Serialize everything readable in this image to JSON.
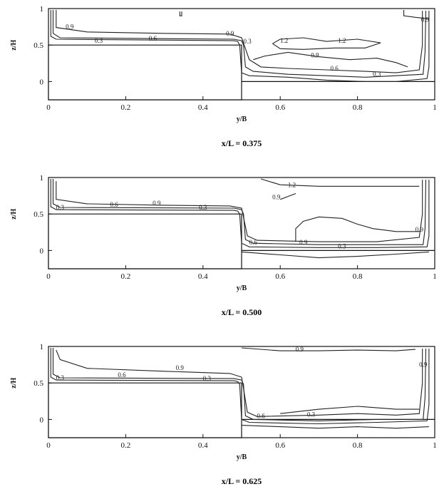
{
  "chart_data": [
    {
      "type": "contour",
      "title": "x/L = 0.375",
      "xlabel": "y/B",
      "ylabel": "z/H",
      "xlim": [
        0,
        1
      ],
      "ylim": [
        -0.25,
        1
      ],
      "xticks": [
        "0",
        "0.2",
        "0.4",
        "0.6",
        "0.8",
        "1"
      ],
      "yticks": [
        "1",
        "0.5",
        "0"
      ],
      "contour_levels": [
        "0.3",
        "0.6",
        "0.9",
        "1.2"
      ],
      "contour_labels": [
        {
          "text": "0.9",
          "x": 0.055,
          "y": 0.72
        },
        {
          "text": "0.3",
          "x": 0.13,
          "y": 0.53
        },
        {
          "text": "0.6",
          "x": 0.27,
          "y": 0.56
        },
        {
          "text": "0.9",
          "x": 0.47,
          "y": 0.63
        },
        {
          "text": "0.3",
          "x": 0.515,
          "y": 0.52
        },
        {
          "text": "1.2",
          "x": 0.61,
          "y": 0.53
        },
        {
          "text": "1.2",
          "x": 0.76,
          "y": 0.53
        },
        {
          "text": "0.9",
          "x": 0.69,
          "y": 0.33
        },
        {
          "text": "0.6",
          "x": 0.74,
          "y": 0.15
        },
        {
          "text": "0.3",
          "x": 0.85,
          "y": 0.07
        },
        {
          "text": "0.9",
          "x": 0.975,
          "y": 0.82
        }
      ]
    },
    {
      "type": "contour",
      "title": "x/L = 0.500",
      "xlabel": "y/B",
      "ylabel": "z/H",
      "xlim": [
        0,
        1
      ],
      "ylim": [
        -0.25,
        1
      ],
      "xticks": [
        "0",
        "0.2",
        "0.4",
        "0.6",
        "0.8",
        "1"
      ],
      "yticks": [
        "1",
        "0.5",
        "0"
      ],
      "contour_levels": [
        "0.3",
        "0.6",
        "0.9",
        "1.2"
      ],
      "contour_labels": [
        {
          "text": "0.3",
          "x": 0.03,
          "y": 0.56
        },
        {
          "text": "0.6",
          "x": 0.17,
          "y": 0.6
        },
        {
          "text": "0.9",
          "x": 0.28,
          "y": 0.62
        },
        {
          "text": "0.3",
          "x": 0.4,
          "y": 0.56
        },
        {
          "text": "1.2",
          "x": 0.63,
          "y": 0.87
        },
        {
          "text": "0.9",
          "x": 0.59,
          "y": 0.7
        },
        {
          "text": "0.6",
          "x": 0.53,
          "y": 0.08
        },
        {
          "text": "0.9",
          "x": 0.66,
          "y": 0.08
        },
        {
          "text": "0.3",
          "x": 0.76,
          "y": 0.03
        },
        {
          "text": "0.9",
          "x": 0.96,
          "y": 0.26
        }
      ]
    },
    {
      "type": "contour",
      "title": "x/L = 0.625",
      "xlabel": "y/B",
      "ylabel": "z/H",
      "xlim": [
        0,
        1
      ],
      "ylim": [
        -0.25,
        1
      ],
      "xticks": [
        "0",
        "0.2",
        "0.4",
        "0.6",
        "0.8",
        "1"
      ],
      "yticks": [
        "1",
        "0.5",
        "0"
      ],
      "contour_levels": [
        "0.3",
        "0.6",
        "0.9"
      ],
      "contour_labels": [
        {
          "text": "0.3",
          "x": 0.03,
          "y": 0.54
        },
        {
          "text": "0.6",
          "x": 0.19,
          "y": 0.58
        },
        {
          "text": "0.9",
          "x": 0.34,
          "y": 0.68
        },
        {
          "text": "0.3",
          "x": 0.41,
          "y": 0.53
        },
        {
          "text": "0.9",
          "x": 0.65,
          "y": 0.93
        },
        {
          "text": "0.6",
          "x": 0.55,
          "y": 0.02
        },
        {
          "text": "0.3",
          "x": 0.68,
          "y": 0.04
        },
        {
          "text": "0.9",
          "x": 0.97,
          "y": 0.72
        }
      ]
    }
  ]
}
